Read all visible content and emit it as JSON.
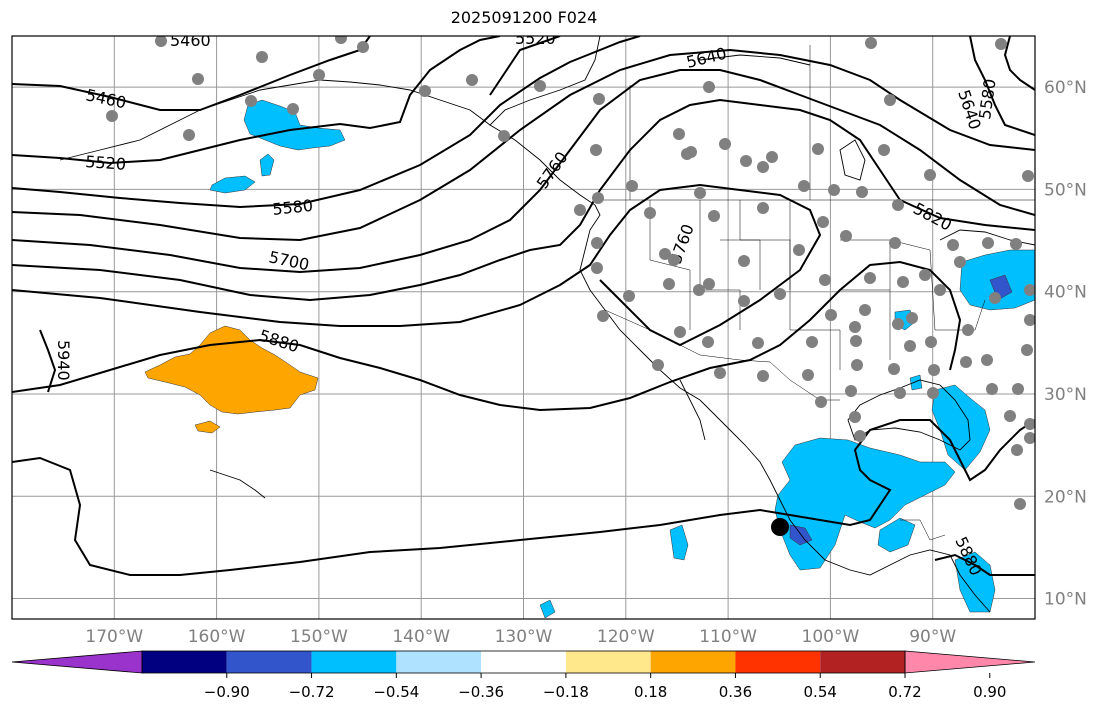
{
  "title": "2025091200 F024",
  "map": {
    "lon_range": [
      -180,
      -80
    ],
    "lat_range": [
      8,
      65
    ],
    "lon_ticks": [
      {
        "value": -170,
        "label": "170°W"
      },
      {
        "value": -160,
        "label": "160°W"
      },
      {
        "value": -150,
        "label": "150°W"
      },
      {
        "value": -140,
        "label": "140°W"
      },
      {
        "value": -130,
        "label": "130°W"
      },
      {
        "value": -120,
        "label": "120°W"
      },
      {
        "value": -110,
        "label": "110°W"
      },
      {
        "value": -100,
        "label": "100°W"
      },
      {
        "value": -90,
        "label": "90°W"
      }
    ],
    "lat_ticks": [
      {
        "value": 10,
        "label": "10°N"
      },
      {
        "value": 20,
        "label": "20°N"
      },
      {
        "value": 30,
        "label": "30°N"
      },
      {
        "value": 40,
        "label": "40°N"
      },
      {
        "value": 50,
        "label": "50°N"
      },
      {
        "value": 60,
        "label": "60°N"
      }
    ],
    "grid": true,
    "contour_labels": [
      "5460",
      "5520",
      "5580",
      "5640",
      "5700",
      "5760",
      "5820",
      "5880",
      "5940"
    ],
    "marker": "black dot at approx 105°W, 17°N",
    "station_color": "#808080",
    "contour_color": "#000000"
  },
  "colorbar": {
    "tick_labels": [
      "−0.90",
      "−0.72",
      "−0.54",
      "−0.36",
      "−0.18",
      "0.18",
      "0.36",
      "0.54",
      "0.72",
      "0.90"
    ],
    "colors": [
      "#9933cc",
      "#000080",
      "#3355cc",
      "#00bfff",
      "#aee2ff",
      "#ffffff",
      "#ffe88c",
      "#ffa500",
      "#ff3300",
      "#b22222",
      "#ff88aa"
    ]
  }
}
